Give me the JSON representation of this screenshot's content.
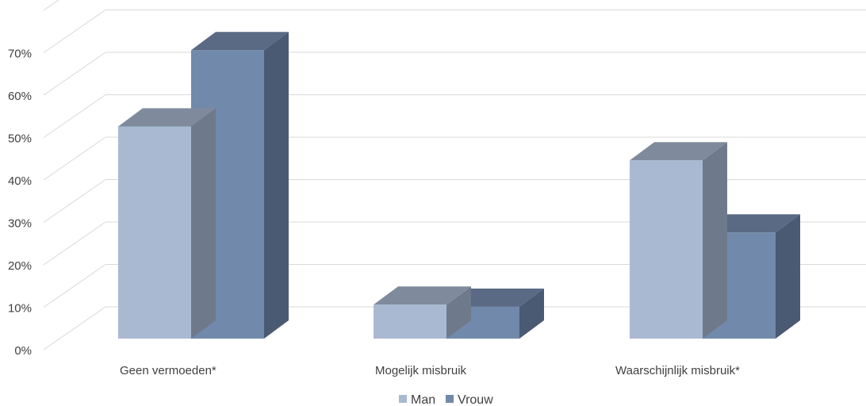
{
  "chart_data": {
    "type": "bar",
    "title": "",
    "xlabel": "",
    "ylabel": "",
    "categories": [
      "Geen vermoeden*",
      "Mogelijk misbruik",
      "Waarschijnlijk misbruik*"
    ],
    "series": [
      {
        "name": "Man",
        "values": [
          50,
          8,
          42
        ],
        "color": "#a9b9d2"
      },
      {
        "name": "Vrouw",
        "values": [
          68,
          7.5,
          25
        ],
        "color": "#7189ab"
      }
    ],
    "ylim": [
      0,
      80
    ],
    "yticks": [
      "0%",
      "10%",
      "20%",
      "30%",
      "40%",
      "50%",
      "60%",
      "70%"
    ],
    "grid": true,
    "legend_position": "bottom"
  }
}
